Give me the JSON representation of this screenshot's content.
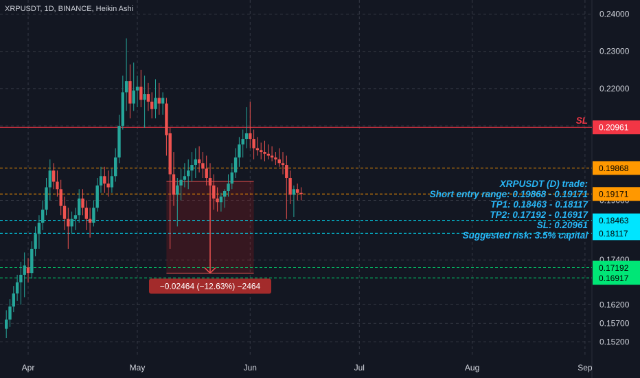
{
  "header": {
    "title": "XRPUSDT, 1D, BINANCE, Heikin Ashi"
  },
  "colors": {
    "background": "#131722",
    "up": "#26a69a",
    "down": "#ef5350",
    "sl": "#f23645",
    "entry": "#ff9800",
    "tp1": "#00e5ff",
    "tp2": "#00e676",
    "note": "#29b6f6",
    "measure": "#b71c1c"
  },
  "chart_data": {
    "type": "candlestick",
    "title": "XRPUSDT, 1D, BINANCE, Heikin Ashi",
    "y_axis": {
      "ticks": [
        "0.24000",
        "0.23000",
        "0.22000",
        "0.21000",
        "0.19000",
        "0.17400",
        "0.16200",
        "0.15700",
        "0.15200"
      ],
      "tick_values": [
        0.24,
        0.23,
        0.22,
        0.21,
        0.19,
        0.174,
        0.162,
        0.157,
        0.152
      ],
      "range": [
        0.1495,
        0.2425
      ]
    },
    "x_axis": {
      "labels": [
        "Apr",
        "May",
        "Jun",
        "Jul",
        "Aug",
        "Sep"
      ],
      "label_days": [
        0,
        30,
        61,
        91,
        122,
        153
      ]
    },
    "candles": [
      {
        "x": -6,
        "o": 0.1555,
        "h": 0.1605,
        "l": 0.153,
        "c": 0.158
      },
      {
        "x": -5,
        "o": 0.158,
        "h": 0.1635,
        "l": 0.156,
        "c": 0.1615
      },
      {
        "x": -4,
        "o": 0.1615,
        "h": 0.167,
        "l": 0.16,
        "c": 0.165
      },
      {
        "x": -3,
        "o": 0.165,
        "h": 0.17,
        "l": 0.163,
        "c": 0.168
      },
      {
        "x": -2,
        "o": 0.168,
        "h": 0.1735,
        "l": 0.162,
        "c": 0.17
      },
      {
        "x": -1,
        "o": 0.17,
        "h": 0.176,
        "l": 0.164,
        "c": 0.1725
      },
      {
        "x": 0,
        "o": 0.172,
        "h": 0.1745,
        "l": 0.168,
        "c": 0.1705
      },
      {
        "x": 1,
        "o": 0.1705,
        "h": 0.179,
        "l": 0.169,
        "c": 0.177
      },
      {
        "x": 2,
        "o": 0.177,
        "h": 0.183,
        "l": 0.175,
        "c": 0.181
      },
      {
        "x": 3,
        "o": 0.181,
        "h": 0.186,
        "l": 0.177,
        "c": 0.184
      },
      {
        "x": 4,
        "o": 0.184,
        "h": 0.19,
        "l": 0.182,
        "c": 0.1875
      },
      {
        "x": 5,
        "o": 0.1875,
        "h": 0.196,
        "l": 0.186,
        "c": 0.1935
      },
      {
        "x": 6,
        "o": 0.1935,
        "h": 0.201,
        "l": 0.19,
        "c": 0.198
      },
      {
        "x": 7,
        "o": 0.198,
        "h": 0.2,
        "l": 0.193,
        "c": 0.195
      },
      {
        "x": 8,
        "o": 0.195,
        "h": 0.198,
        "l": 0.191,
        "c": 0.193
      },
      {
        "x": 9,
        "o": 0.193,
        "h": 0.1955,
        "l": 0.186,
        "c": 0.1885
      },
      {
        "x": 10,
        "o": 0.1885,
        "h": 0.191,
        "l": 0.182,
        "c": 0.185
      },
      {
        "x": 11,
        "o": 0.185,
        "h": 0.188,
        "l": 0.177,
        "c": 0.183
      },
      {
        "x": 12,
        "o": 0.183,
        "h": 0.187,
        "l": 0.181,
        "c": 0.185
      },
      {
        "x": 13,
        "o": 0.185,
        "h": 0.188,
        "l": 0.182,
        "c": 0.186
      },
      {
        "x": 14,
        "o": 0.186,
        "h": 0.193,
        "l": 0.184,
        "c": 0.1905
      },
      {
        "x": 15,
        "o": 0.1905,
        "h": 0.193,
        "l": 0.186,
        "c": 0.188
      },
      {
        "x": 16,
        "o": 0.188,
        "h": 0.19,
        "l": 0.182,
        "c": 0.185
      },
      {
        "x": 17,
        "o": 0.185,
        "h": 0.188,
        "l": 0.18,
        "c": 0.184
      },
      {
        "x": 18,
        "o": 0.184,
        "h": 0.19,
        "l": 0.183,
        "c": 0.188
      },
      {
        "x": 19,
        "o": 0.188,
        "h": 0.196,
        "l": 0.187,
        "c": 0.194
      },
      {
        "x": 20,
        "o": 0.194,
        "h": 0.199,
        "l": 0.192,
        "c": 0.1965
      },
      {
        "x": 21,
        "o": 0.1965,
        "h": 0.199,
        "l": 0.192,
        "c": 0.1945
      },
      {
        "x": 22,
        "o": 0.1945,
        "h": 0.198,
        "l": 0.191,
        "c": 0.1935
      },
      {
        "x": 23,
        "o": 0.1935,
        "h": 0.1985,
        "l": 0.192,
        "c": 0.1965
      },
      {
        "x": 24,
        "o": 0.1965,
        "h": 0.204,
        "l": 0.195,
        "c": 0.2015
      },
      {
        "x": 25,
        "o": 0.2015,
        "h": 0.213,
        "l": 0.2,
        "c": 0.21
      },
      {
        "x": 26,
        "o": 0.21,
        "h": 0.2235,
        "l": 0.209,
        "c": 0.219
      },
      {
        "x": 27,
        "o": 0.219,
        "h": 0.2335,
        "l": 0.214,
        "c": 0.222
      },
      {
        "x": 28,
        "o": 0.222,
        "h": 0.2265,
        "l": 0.212,
        "c": 0.216
      },
      {
        "x": 29,
        "o": 0.216,
        "h": 0.227,
        "l": 0.214,
        "c": 0.2195
      },
      {
        "x": 30,
        "o": 0.2195,
        "h": 0.2235,
        "l": 0.215,
        "c": 0.2205
      },
      {
        "x": 31,
        "o": 0.2205,
        "h": 0.225,
        "l": 0.215,
        "c": 0.217
      },
      {
        "x": 32,
        "o": 0.217,
        "h": 0.2235,
        "l": 0.2095,
        "c": 0.2185
      },
      {
        "x": 33,
        "o": 0.2185,
        "h": 0.2215,
        "l": 0.214,
        "c": 0.2165
      },
      {
        "x": 34,
        "o": 0.2165,
        "h": 0.219,
        "l": 0.212,
        "c": 0.2145
      },
      {
        "x": 35,
        "o": 0.2145,
        "h": 0.2225,
        "l": 0.212,
        "c": 0.2175
      },
      {
        "x": 36,
        "o": 0.2175,
        "h": 0.2215,
        "l": 0.213,
        "c": 0.216
      },
      {
        "x": 37,
        "o": 0.216,
        "h": 0.219,
        "l": 0.213,
        "c": 0.2175
      },
      {
        "x": 38,
        "o": 0.216,
        "h": 0.2175,
        "l": 0.202,
        "c": 0.2075
      },
      {
        "x": 39,
        "o": 0.208,
        "h": 0.2095,
        "l": 0.177,
        "c": 0.197
      },
      {
        "x": 40,
        "o": 0.197,
        "h": 0.203,
        "l": 0.1885,
        "c": 0.1915
      },
      {
        "x": 41,
        "o": 0.1915,
        "h": 0.196,
        "l": 0.183,
        "c": 0.194
      },
      {
        "x": 42,
        "o": 0.194,
        "h": 0.1985,
        "l": 0.19,
        "c": 0.1955
      },
      {
        "x": 43,
        "o": 0.1955,
        "h": 0.2,
        "l": 0.1935,
        "c": 0.1965
      },
      {
        "x": 44,
        "o": 0.1965,
        "h": 0.201,
        "l": 0.193,
        "c": 0.198
      },
      {
        "x": 45,
        "o": 0.198,
        "h": 0.203,
        "l": 0.195,
        "c": 0.1995
      },
      {
        "x": 46,
        "o": 0.1995,
        "h": 0.204,
        "l": 0.196,
        "c": 0.201
      },
      {
        "x": 47,
        "o": 0.201,
        "h": 0.2045,
        "l": 0.1975,
        "c": 0.2
      },
      {
        "x": 48,
        "o": 0.2,
        "h": 0.203,
        "l": 0.196,
        "c": 0.1985
      },
      {
        "x": 49,
        "o": 0.1985,
        "h": 0.202,
        "l": 0.194,
        "c": 0.196
      },
      {
        "x": 50,
        "o": 0.196,
        "h": 0.2,
        "l": 0.186,
        "c": 0.194
      },
      {
        "x": 51,
        "o": 0.194,
        "h": 0.197,
        "l": 0.1875,
        "c": 0.1905
      },
      {
        "x": 52,
        "o": 0.1905,
        "h": 0.1935,
        "l": 0.187,
        "c": 0.1895
      },
      {
        "x": 53,
        "o": 0.1895,
        "h": 0.192,
        "l": 0.187,
        "c": 0.191
      },
      {
        "x": 54,
        "o": 0.191,
        "h": 0.193,
        "l": 0.188,
        "c": 0.1925
      },
      {
        "x": 55,
        "o": 0.1925,
        "h": 0.197,
        "l": 0.191,
        "c": 0.1945
      },
      {
        "x": 56,
        "o": 0.1945,
        "h": 0.2,
        "l": 0.193,
        "c": 0.1975
      },
      {
        "x": 57,
        "o": 0.1975,
        "h": 0.204,
        "l": 0.196,
        "c": 0.2015
      },
      {
        "x": 58,
        "o": 0.2015,
        "h": 0.207,
        "l": 0.199,
        "c": 0.205
      },
      {
        "x": 59,
        "o": 0.205,
        "h": 0.209,
        "l": 0.2015,
        "c": 0.2065
      },
      {
        "x": 60,
        "o": 0.2065,
        "h": 0.215,
        "l": 0.204,
        "c": 0.208
      },
      {
        "x": 61,
        "o": 0.208,
        "h": 0.2165,
        "l": 0.204,
        "c": 0.2065
      },
      {
        "x": 62,
        "o": 0.2065,
        "h": 0.209,
        "l": 0.201,
        "c": 0.204
      },
      {
        "x": 63,
        "o": 0.204,
        "h": 0.207,
        "l": 0.202,
        "c": 0.2035
      },
      {
        "x": 64,
        "o": 0.2035,
        "h": 0.2055,
        "l": 0.201,
        "c": 0.203
      },
      {
        "x": 65,
        "o": 0.203,
        "h": 0.206,
        "l": 0.2005,
        "c": 0.2025
      },
      {
        "x": 66,
        "o": 0.2025,
        "h": 0.205,
        "l": 0.201,
        "c": 0.202
      },
      {
        "x": 67,
        "o": 0.202,
        "h": 0.2045,
        "l": 0.2005,
        "c": 0.2015
      },
      {
        "x": 68,
        "o": 0.2015,
        "h": 0.203,
        "l": 0.1995,
        "c": 0.201
      },
      {
        "x": 69,
        "o": 0.201,
        "h": 0.204,
        "l": 0.199,
        "c": 0.2
      },
      {
        "x": 70,
        "o": 0.2,
        "h": 0.203,
        "l": 0.197,
        "c": 0.1995
      },
      {
        "x": 71,
        "o": 0.1995,
        "h": 0.202,
        "l": 0.185,
        "c": 0.196
      },
      {
        "x": 72,
        "o": 0.196,
        "h": 0.198,
        "l": 0.189,
        "c": 0.1915
      },
      {
        "x": 73,
        "o": 0.1915,
        "h": 0.194,
        "l": 0.1855,
        "c": 0.193
      },
      {
        "x": 74,
        "o": 0.193,
        "h": 0.1945,
        "l": 0.19,
        "c": 0.192
      },
      {
        "x": 75,
        "o": 0.192,
        "h": 0.1935,
        "l": 0.19,
        "c": 0.1917
      }
    ],
    "levels": [
      {
        "name": "SL",
        "value": 0.20961,
        "label": "0.20961",
        "color": "#f23645",
        "dash": "none",
        "tag": "SL"
      },
      {
        "name": "entry-high",
        "value": 0.19868,
        "label": "0.19868",
        "color": "#ff9800",
        "dash": "4 3"
      },
      {
        "name": "entry-low",
        "value": 0.19171,
        "label": "0.19171",
        "color": "#ff9800",
        "dash": "4 3"
      },
      {
        "name": "tp1-high",
        "value": 0.18463,
        "label": "0.18463",
        "color": "#00e5ff",
        "dash": "4 3"
      },
      {
        "name": "tp1-low",
        "value": 0.18117,
        "label": "0.18117",
        "color": "#00e5ff",
        "dash": "4 3"
      },
      {
        "name": "tp2-high",
        "value": 0.17192,
        "label": "0.17192",
        "color": "#00e676",
        "dash": "4 3"
      },
      {
        "name": "tp2-low",
        "value": 0.16917,
        "label": "0.16917",
        "color": "#00e676",
        "dash": "4 3"
      }
    ],
    "annotation": [
      "XRPUSDT (D) trade:",
      "Short entry range: 0.19868 - 0.19171",
      "TP1: 0.18463 - 0.18117",
      "TP2: 0.17192 - 0.16917",
      "SL: 0.20961",
      "Suggested risk: 3.5% capital"
    ],
    "measure": {
      "x_from": 38,
      "x_to": 62,
      "y_top": 0.1951,
      "y_bottom": 0.17046,
      "label": "−0.02464 (−12.63%) −2464"
    }
  }
}
